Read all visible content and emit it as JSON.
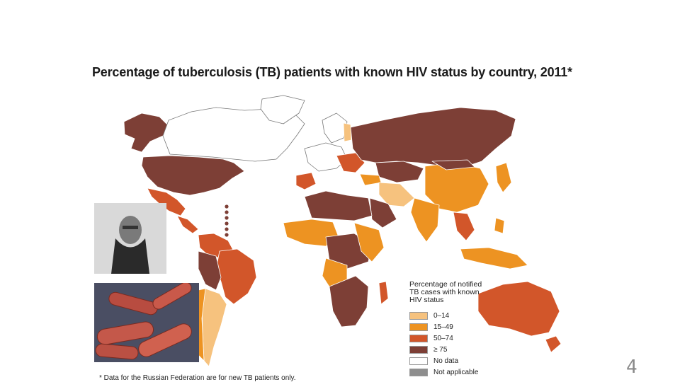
{
  "title": "Percentage of tuberculosis (TB) patients with known HIV status by country, 2011*",
  "footnote": "* Data for the Russian Federation are for new TB patients only.",
  "legend": {
    "title": "Percentage of notified TB cases with known HIV status",
    "items": [
      {
        "label": "0–14",
        "color": "#f6c27e"
      },
      {
        "label": "15–49",
        "color": "#ed9322"
      },
      {
        "label": "50–74",
        "color": "#d2562a"
      },
      {
        "label": "≥ 75",
        "color": "#7d3f36"
      },
      {
        "label": "No data",
        "color": "#ffffff"
      },
      {
        "label": "Not applicable",
        "color": "#8e8e8e"
      }
    ]
  },
  "images": {
    "portrait": "portrait-photo",
    "bacteria": "bacteria-microscopy-image"
  },
  "page_number": "4"
}
